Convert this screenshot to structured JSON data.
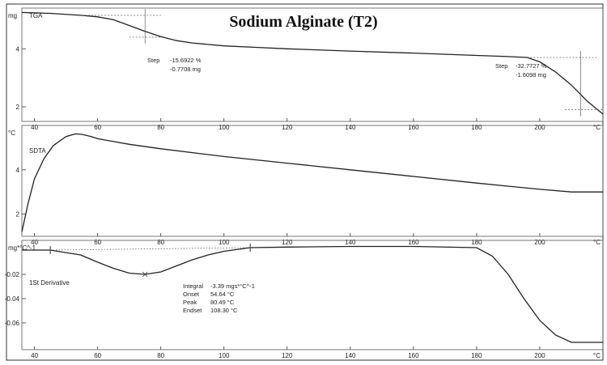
{
  "title": "Sodium Alginate (T2)",
  "chart_data": [
    {
      "type": "line",
      "panel": "TGA",
      "unit": "mg",
      "xunit": "°C",
      "xlim": [
        36,
        220
      ],
      "ylim": [
        1.5,
        5.4
      ],
      "x_ticks": [
        40,
        60,
        80,
        100,
        120,
        140,
        160,
        180,
        200
      ],
      "y_ticks": [
        2,
        4
      ],
      "series": [
        {
          "x": [
            36,
            45,
            55,
            60,
            65,
            70,
            75,
            80,
            85,
            90,
            95,
            100,
            110,
            120,
            140,
            160,
            180,
            190,
            196,
            200,
            205,
            210,
            215,
            220
          ],
          "y": [
            5.25,
            5.22,
            5.15,
            5.1,
            5.0,
            4.8,
            4.6,
            4.42,
            4.28,
            4.2,
            4.15,
            4.1,
            4.05,
            4.0,
            3.92,
            3.85,
            3.77,
            3.73,
            3.7,
            3.55,
            3.2,
            2.75,
            2.2,
            1.75
          ]
        }
      ],
      "annotations": [
        {
          "label": "Step",
          "lines": [
            "-15.6922 %",
            "-0.7708 mg"
          ]
        },
        {
          "label": "Step",
          "lines": [
            "-32.7727 %",
            "-1.6098 mg"
          ]
        }
      ]
    },
    {
      "type": "line",
      "panel": "SDTA",
      "unit": "°C",
      "xunit": "°C",
      "xlim": [
        36,
        220
      ],
      "ylim": [
        1.0,
        6.0
      ],
      "x_ticks": [
        40,
        60,
        80,
        100,
        120,
        140,
        160,
        180,
        200
      ],
      "y_ticks": [
        2,
        4
      ],
      "series": [
        {
          "x": [
            36,
            38,
            40,
            43,
            46,
            50,
            53,
            55,
            58,
            60,
            70,
            80,
            100,
            120,
            140,
            160,
            180,
            200,
            210,
            220
          ],
          "y": [
            1.2,
            2.5,
            3.6,
            4.5,
            5.1,
            5.5,
            5.62,
            5.6,
            5.5,
            5.4,
            5.15,
            4.95,
            4.6,
            4.3,
            4.0,
            3.7,
            3.4,
            3.12,
            3.0,
            3.0
          ]
        }
      ]
    },
    {
      "type": "line",
      "panel": "1St Derivative",
      "unit": "mg*°C^-1",
      "xunit": "°C",
      "xlim": [
        36,
        220
      ],
      "ylim": [
        -0.082,
        0.008
      ],
      "x_ticks": [
        40,
        60,
        80,
        100,
        120,
        140,
        160,
        180,
        200
      ],
      "y_ticks": [
        -0.02,
        -0.04,
        -0.06
      ],
      "series": [
        {
          "x": [
            36,
            45,
            54.6,
            60,
            65,
            70,
            75,
            80,
            85,
            90,
            95,
            100,
            108.3,
            120,
            140,
            160,
            180,
            185,
            190,
            195,
            200,
            205,
            210,
            220
          ],
          "y": [
            0.0,
            0.0,
            -0.004,
            -0.01,
            -0.015,
            -0.019,
            -0.02,
            -0.018,
            -0.013,
            -0.008,
            -0.004,
            -0.001,
            0.002,
            0.0025,
            0.003,
            0.003,
            0.002,
            -0.005,
            -0.02,
            -0.04,
            -0.058,
            -0.07,
            -0.076,
            -0.076
          ]
        }
      ],
      "annotations": [
        {
          "label": "Integral",
          "value": "-3.39 mgs*°C^-1"
        },
        {
          "label": "Onset",
          "value": "54.64 °C"
        },
        {
          "label": "Peak",
          "value": "80.49 °C"
        },
        {
          "label": "Endset",
          "value": "108.30 °C"
        }
      ]
    }
  ]
}
